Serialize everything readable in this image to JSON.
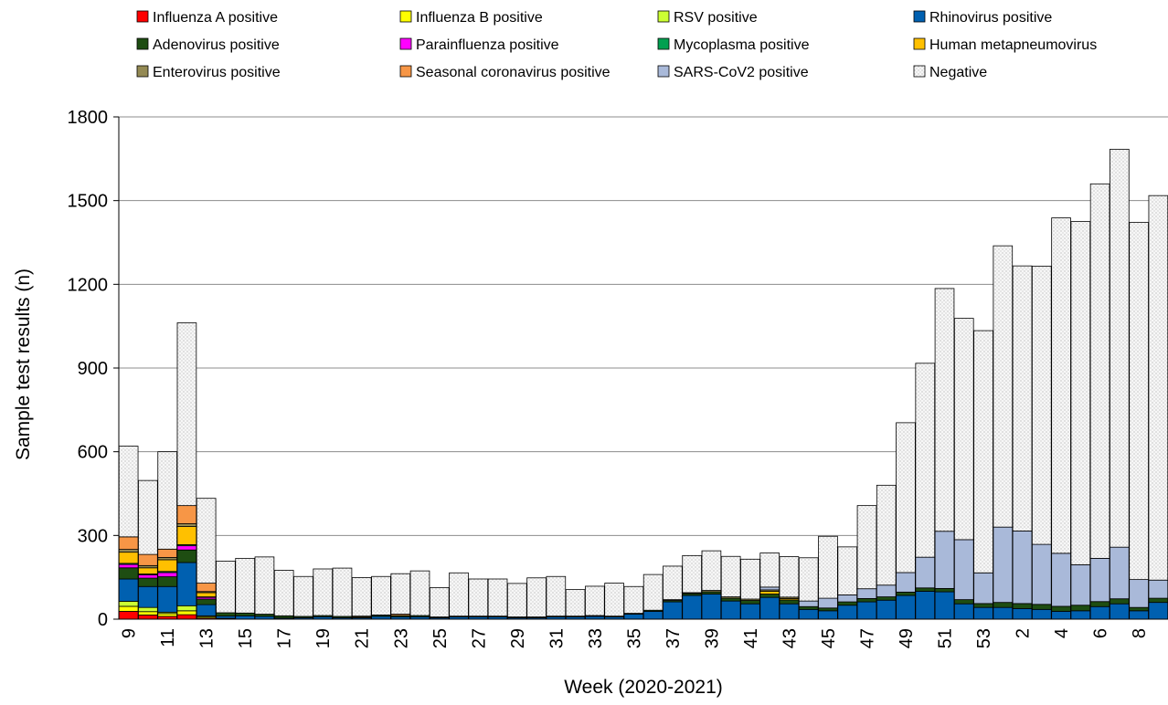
{
  "chart_data": {
    "type": "bar",
    "stacked": true,
    "title": "",
    "xlabel": "Week (2020-2021)",
    "ylabel": "Sample test results (n)",
    "ylim": [
      0,
      1800
    ],
    "yticks": [
      0,
      300,
      600,
      900,
      1200,
      1500,
      1800
    ],
    "grid": "horizontal",
    "legend_position": "top",
    "categories": [
      "9",
      "10",
      "11",
      "12",
      "13",
      "14",
      "15",
      "16",
      "17",
      "18",
      "19",
      "20",
      "21",
      "22",
      "23",
      "24",
      "25",
      "26",
      "27",
      "28",
      "29",
      "30",
      "31",
      "32",
      "33",
      "34",
      "35",
      "36",
      "37",
      "38",
      "39",
      "40",
      "41",
      "42",
      "43",
      "44",
      "45",
      "46",
      "47",
      "48",
      "49",
      "50",
      "51",
      "52",
      "53",
      "1",
      "2",
      "3",
      "4",
      "5",
      "6",
      "7",
      "8",
      "9"
    ],
    "tick_labels": [
      "9",
      "11",
      "13",
      "15",
      "17",
      "19",
      "21",
      "23",
      "25",
      "27",
      "29",
      "31",
      "33",
      "35",
      "37",
      "39",
      "41",
      "43",
      "45",
      "47",
      "49",
      "51",
      "53",
      "2",
      "4",
      "6",
      "8"
    ],
    "series": [
      {
        "name": "Influenza A positive",
        "color": "#ff0000",
        "values": [
          28,
          15,
          10,
          16,
          4,
          0,
          0,
          0,
          0,
          0,
          0,
          0,
          0,
          0,
          0,
          0,
          0,
          0,
          0,
          0,
          0,
          0,
          0,
          0,
          0,
          0,
          0,
          0,
          0,
          0,
          0,
          0,
          0,
          0,
          0,
          0,
          0,
          0,
          0,
          0,
          0,
          0,
          0,
          0,
          0,
          0,
          0,
          0,
          0,
          0,
          0,
          0,
          0,
          0
        ]
      },
      {
        "name": "Influenza B positive",
        "color": "#ffff00",
        "values": [
          18,
          12,
          10,
          14,
          5,
          2,
          0,
          0,
          0,
          0,
          0,
          0,
          0,
          0,
          0,
          0,
          0,
          0,
          0,
          0,
          0,
          0,
          0,
          0,
          0,
          0,
          0,
          0,
          0,
          0,
          0,
          0,
          0,
          0,
          0,
          0,
          0,
          0,
          0,
          0,
          0,
          0,
          0,
          0,
          0,
          0,
          0,
          0,
          0,
          0,
          0,
          0,
          0,
          0
        ]
      },
      {
        "name": "RSV positive",
        "color": "#ccff33",
        "values": [
          18,
          15,
          5,
          18,
          3,
          1,
          0,
          0,
          0,
          0,
          0,
          0,
          0,
          0,
          0,
          0,
          0,
          0,
          0,
          0,
          0,
          0,
          0,
          0,
          0,
          0,
          0,
          0,
          0,
          0,
          0,
          0,
          0,
          0,
          0,
          0,
          0,
          0,
          0,
          0,
          0,
          0,
          0,
          0,
          0,
          0,
          0,
          0,
          0,
          0,
          0,
          0,
          0,
          0
        ]
      },
      {
        "name": "Rhinovirus positive",
        "color": "#0060b0",
        "values": [
          80,
          75,
          92,
          155,
          40,
          8,
          12,
          10,
          4,
          5,
          8,
          5,
          5,
          10,
          8,
          8,
          5,
          8,
          8,
          8,
          5,
          5,
          8,
          8,
          10,
          8,
          18,
          28,
          62,
          85,
          90,
          65,
          55,
          78,
          55,
          35,
          30,
          50,
          62,
          68,
          85,
          100,
          98,
          55,
          42,
          42,
          38,
          35,
          28,
          30,
          45,
          55,
          30,
          60
        ]
      },
      {
        "name": "Adenovirus positive",
        "color": "#1e4d12",
        "values": [
          40,
          30,
          35,
          45,
          20,
          12,
          10,
          8,
          8,
          5,
          5,
          5,
          3,
          5,
          5,
          5,
          3,
          3,
          3,
          3,
          3,
          3,
          3,
          3,
          3,
          3,
          3,
          4,
          5,
          7,
          8,
          10,
          12,
          12,
          14,
          10,
          10,
          12,
          12,
          12,
          12,
          12,
          12,
          15,
          14,
          18,
          18,
          18,
          18,
          20,
          18,
          18,
          12,
          15
        ]
      },
      {
        "name": "Parainfluenza positive",
        "color": "#ff00ff",
        "values": [
          12,
          12,
          15,
          15,
          6,
          0,
          0,
          0,
          0,
          0,
          0,
          0,
          0,
          0,
          0,
          0,
          0,
          0,
          0,
          0,
          0,
          0,
          0,
          0,
          0,
          0,
          0,
          0,
          0,
          0,
          0,
          0,
          0,
          0,
          0,
          0,
          0,
          0,
          0,
          0,
          0,
          0,
          0,
          0,
          0,
          0,
          0,
          0,
          0,
          0,
          0,
          0,
          0,
          0
        ]
      },
      {
        "name": "Mycoplasma positive",
        "color": "#00a050",
        "values": [
          4,
          3,
          4,
          4,
          2,
          0,
          0,
          0,
          0,
          0,
          0,
          0,
          0,
          0,
          0,
          0,
          0,
          0,
          0,
          0,
          0,
          0,
          0,
          0,
          0,
          0,
          0,
          0,
          0,
          0,
          0,
          0,
          0,
          0,
          0,
          0,
          0,
          0,
          0,
          0,
          0,
          0,
          0,
          0,
          0,
          0,
          0,
          0,
          0,
          0,
          0,
          0,
          0,
          0
        ]
      },
      {
        "name": "Human metapneumovirus",
        "color": "#ffc000",
        "values": [
          40,
          22,
          42,
          65,
          15,
          0,
          0,
          0,
          0,
          0,
          0,
          0,
          3,
          0,
          0,
          0,
          0,
          0,
          0,
          0,
          0,
          0,
          0,
          0,
          0,
          0,
          0,
          0,
          0,
          0,
          0,
          0,
          0,
          10,
          5,
          0,
          0,
          0,
          0,
          0,
          0,
          0,
          0,
          0,
          0,
          0,
          0,
          0,
          0,
          0,
          0,
          0,
          0,
          0
        ]
      },
      {
        "name": "Enterovirus positive",
        "color": "#948a54",
        "values": [
          10,
          8,
          8,
          10,
          4,
          0,
          0,
          0,
          0,
          0,
          0,
          0,
          0,
          0,
          0,
          0,
          0,
          0,
          0,
          0,
          0,
          0,
          0,
          0,
          0,
          0,
          0,
          0,
          3,
          3,
          5,
          5,
          5,
          5,
          5,
          0,
          0,
          0,
          0,
          0,
          0,
          0,
          0,
          0,
          0,
          0,
          0,
          0,
          0,
          0,
          0,
          0,
          0,
          0
        ]
      },
      {
        "name": "Seasonal coronavirus positive",
        "color": "#f79646",
        "values": [
          45,
          40,
          30,
          65,
          30,
          0,
          0,
          0,
          0,
          0,
          0,
          0,
          0,
          0,
          5,
          0,
          0,
          0,
          0,
          0,
          0,
          0,
          0,
          0,
          0,
          0,
          0,
          0,
          0,
          0,
          0,
          0,
          0,
          0,
          0,
          0,
          0,
          0,
          0,
          0,
          0,
          0,
          0,
          0,
          0,
          0,
          0,
          0,
          0,
          0,
          0,
          0,
          0,
          0
        ]
      },
      {
        "name": "SARS-CoV2 positive",
        "color": "#a9b9d9",
        "values": [
          0,
          0,
          0,
          0,
          0,
          0,
          0,
          0,
          0,
          0,
          0,
          0,
          0,
          0,
          0,
          0,
          0,
          0,
          0,
          0,
          0,
          0,
          0,
          0,
          0,
          0,
          0,
          0,
          0,
          0,
          0,
          0,
          0,
          10,
          0,
          20,
          35,
          25,
          35,
          42,
          70,
          110,
          205,
          215,
          110,
          270,
          260,
          215,
          190,
          145,
          155,
          185,
          100,
          65
        ]
      },
      {
        "name": "Negative",
        "color": "#f2f2f2",
        "values": [
          325,
          265,
          349,
          655,
          304,
          185,
          196,
          205,
          163,
          143,
          167,
          173,
          138,
          138,
          145,
          160,
          105,
          155,
          133,
          133,
          120,
          140,
          142,
          95,
          105,
          118,
          96,
          128,
          120,
          133,
          142,
          145,
          143,
          122,
          145,
          155,
          222,
          172,
          298,
          358,
          537,
          695,
          870,
          793,
          868,
          1008,
          950,
          997,
          1202,
          1230,
          1342,
          1426,
          1280,
          1378
        ]
      }
    ]
  }
}
